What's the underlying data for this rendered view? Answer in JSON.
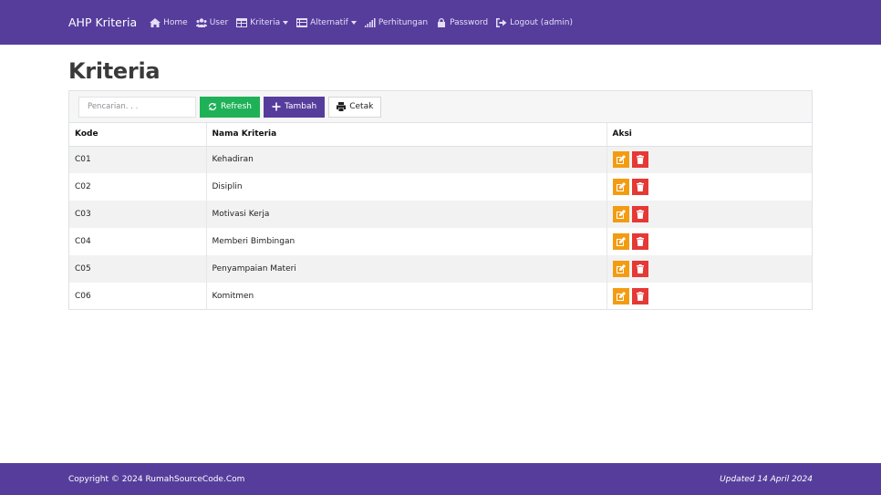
{
  "navbar": {
    "brand": "AHP Kriteria",
    "items": [
      {
        "label": "Home",
        "icon": "home-icon"
      },
      {
        "label": "User",
        "icon": "users-icon"
      },
      {
        "label": "Kriteria",
        "icon": "table-icon",
        "dropdown": true
      },
      {
        "label": "Alternatif",
        "icon": "list-icon",
        "dropdown": true
      },
      {
        "label": "Perhitungan",
        "icon": "signal-icon"
      },
      {
        "label": "Password",
        "icon": "lock-icon"
      },
      {
        "label": "Logout (admin)",
        "icon": "logout-icon"
      }
    ]
  },
  "page": {
    "title": "Kriteria"
  },
  "toolbar": {
    "search_placeholder": "Pencarian. . .",
    "refresh_label": "Refresh",
    "add_label": "Tambah",
    "print_label": "Cetak"
  },
  "table": {
    "headers": [
      "Kode",
      "Nama Kriteria",
      "Aksi"
    ],
    "rows": [
      {
        "kode": "C01",
        "nama": "Kehadiran"
      },
      {
        "kode": "C02",
        "nama": "Disiplin"
      },
      {
        "kode": "C03",
        "nama": "Motivasi Kerja"
      },
      {
        "kode": "C04",
        "nama": "Memberi Bimbingan"
      },
      {
        "kode": "C05",
        "nama": "Penyampaian Materi"
      },
      {
        "kode": "C06",
        "nama": "Komitmen"
      }
    ]
  },
  "footer": {
    "copyright": "Copyright © 2024 RumahSourceCode.Com",
    "updated": "Updated 14 April 2024"
  },
  "colors": {
    "primary": "#563d9c",
    "success": "#1fb157",
    "warning": "#f39c12",
    "danger": "#e53935"
  }
}
